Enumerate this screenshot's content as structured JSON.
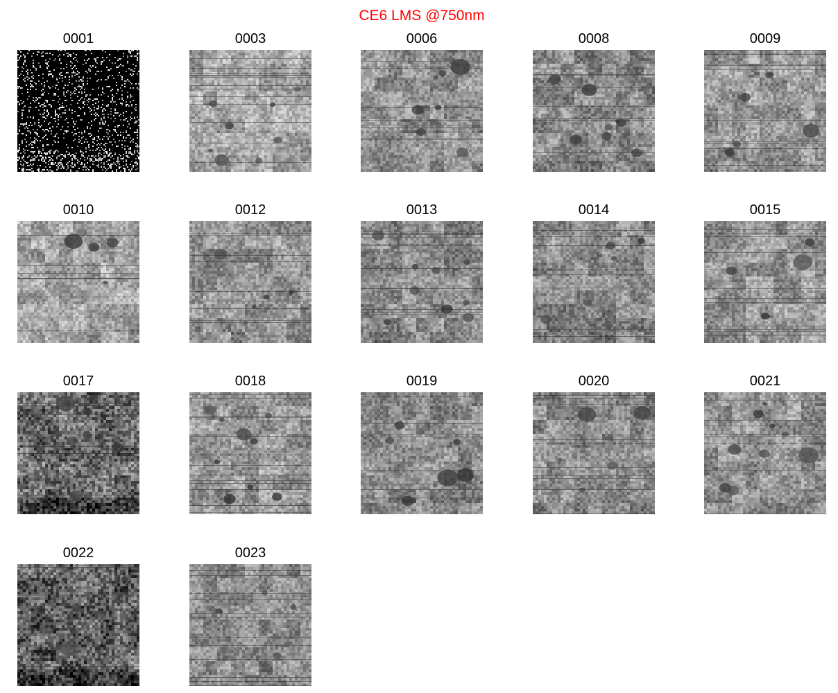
{
  "figure": {
    "title": "CE6 LMS @750nm",
    "title_color": "#ff0000"
  },
  "panels": [
    {
      "label": "0001",
      "kind": "noise"
    },
    {
      "label": "0003",
      "kind": "terrain",
      "tone": 0.66,
      "seed": 3
    },
    {
      "label": "0006",
      "kind": "terrain",
      "tone": 0.58,
      "seed": 6
    },
    {
      "label": "0008",
      "kind": "terrain",
      "tone": 0.55,
      "seed": 8
    },
    {
      "label": "0009",
      "kind": "terrain",
      "tone": 0.6,
      "seed": 9
    },
    {
      "label": "0010",
      "kind": "terrain",
      "tone": 0.65,
      "seed": 10
    },
    {
      "label": "0012",
      "kind": "terrain",
      "tone": 0.58,
      "seed": 12
    },
    {
      "label": "0013",
      "kind": "terrain",
      "tone": 0.56,
      "seed": 13
    },
    {
      "label": "0014",
      "kind": "terrain",
      "tone": 0.55,
      "seed": 14
    },
    {
      "label": "0015",
      "kind": "terrain",
      "tone": 0.6,
      "seed": 15
    },
    {
      "label": "0017",
      "kind": "terrain",
      "tone": 0.42,
      "seed": 17
    },
    {
      "label": "0018",
      "kind": "terrain",
      "tone": 0.6,
      "seed": 18
    },
    {
      "label": "0019",
      "kind": "terrain",
      "tone": 0.55,
      "seed": 19
    },
    {
      "label": "0020",
      "kind": "terrain",
      "tone": 0.55,
      "seed": 20
    },
    {
      "label": "0021",
      "kind": "terrain",
      "tone": 0.58,
      "seed": 21
    },
    {
      "label": "0022",
      "kind": "terrain",
      "tone": 0.38,
      "seed": 22
    },
    {
      "label": "0023",
      "kind": "terrain",
      "tone": 0.55,
      "seed": 23
    }
  ]
}
